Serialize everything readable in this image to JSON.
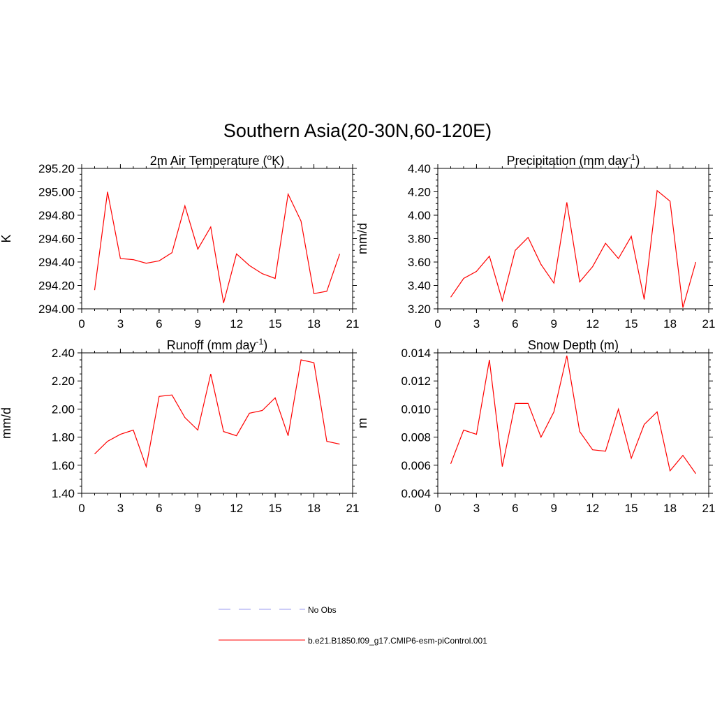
{
  "figure": {
    "title": "Southern Asia(20-30N,60-120E)"
  },
  "colors": {
    "model": "#ff0000",
    "obs": "#9a9af0"
  },
  "legend": {
    "position": "bottom-center",
    "entries": [
      {
        "label": "No Obs",
        "style": "dashed",
        "color": "#9a9af0"
      },
      {
        "label": "b.e21.B1850.f09_g17.CMIP6-esm-piControl.001",
        "style": "solid",
        "color": "#ff0000"
      }
    ]
  },
  "chart_data": [
    {
      "type": "line",
      "title": "2m Air Temperature (°K)",
      "title_main": "2m Air Temperature (",
      "title_sup": "o",
      "title_tail": "K)",
      "ylabel": "K",
      "xlim": [
        0,
        21
      ],
      "ylim": [
        294.0,
        295.2
      ],
      "xticks": [
        0,
        3,
        6,
        9,
        12,
        15,
        18,
        21
      ],
      "xtick_labels": [
        "0",
        "3",
        "6",
        "9",
        "12",
        "15",
        "18",
        "21"
      ],
      "yticks": [
        294.0,
        294.2,
        294.4,
        294.6,
        294.8,
        295.0,
        295.2
      ],
      "ytick_labels": [
        "294.00",
        "294.20",
        "294.40",
        "294.60",
        "294.80",
        "295.00",
        "295.20"
      ],
      "x": [
        1,
        2,
        3,
        4,
        5,
        6,
        7,
        8,
        9,
        10,
        11,
        12,
        13,
        14,
        15,
        16,
        17,
        18,
        19,
        20
      ],
      "series": [
        {
          "name": "b.e21.B1850.f09_g17.CMIP6-esm-piControl.001",
          "values": [
            294.16,
            295.0,
            294.43,
            294.42,
            294.39,
            294.41,
            294.48,
            294.88,
            294.51,
            294.7,
            294.05,
            294.47,
            294.37,
            294.3,
            294.26,
            294.98,
            294.75,
            294.13,
            294.15,
            294.47
          ]
        }
      ]
    },
    {
      "type": "line",
      "title": "Precipitation (mm day-1)",
      "title_main": "Precipitation (mm day",
      "title_sup": "-1",
      "title_tail": ")",
      "ylabel": "mm/d",
      "xlim": [
        0,
        21
      ],
      "ylim": [
        3.2,
        4.4
      ],
      "xticks": [
        0,
        3,
        6,
        9,
        12,
        15,
        18,
        21
      ],
      "xtick_labels": [
        "0",
        "3",
        "6",
        "9",
        "12",
        "15",
        "18",
        "21"
      ],
      "yticks": [
        3.2,
        3.4,
        3.6,
        3.8,
        4.0,
        4.2,
        4.4
      ],
      "ytick_labels": [
        "3.20",
        "3.40",
        "3.60",
        "3.80",
        "4.00",
        "4.20",
        "4.40"
      ],
      "x": [
        1,
        2,
        3,
        4,
        5,
        6,
        7,
        8,
        9,
        10,
        11,
        12,
        13,
        14,
        15,
        16,
        17,
        18,
        19,
        20
      ],
      "series": [
        {
          "name": "b.e21.B1850.f09_g17.CMIP6-esm-piControl.001",
          "values": [
            3.3,
            3.46,
            3.52,
            3.65,
            3.27,
            3.7,
            3.81,
            3.58,
            3.42,
            4.11,
            3.43,
            3.56,
            3.76,
            3.63,
            3.82,
            3.28,
            4.21,
            4.12,
            3.21,
            3.6
          ]
        }
      ]
    },
    {
      "type": "line",
      "title": "Runoff (mm day-1)",
      "title_main": "Runoff (mm day",
      "title_sup": "-1",
      "title_tail": ")",
      "ylabel": "mm/d",
      "xlim": [
        0,
        21
      ],
      "ylim": [
        1.4,
        2.4
      ],
      "xticks": [
        0,
        3,
        6,
        9,
        12,
        15,
        18,
        21
      ],
      "xtick_labels": [
        "0",
        "3",
        "6",
        "9",
        "12",
        "15",
        "18",
        "21"
      ],
      "yticks": [
        1.4,
        1.6,
        1.8,
        2.0,
        2.2,
        2.4
      ],
      "ytick_labels": [
        "1.40",
        "1.60",
        "1.80",
        "2.00",
        "2.20",
        "2.40"
      ],
      "x": [
        1,
        2,
        3,
        4,
        5,
        6,
        7,
        8,
        9,
        10,
        11,
        12,
        13,
        14,
        15,
        16,
        17,
        18,
        19,
        20
      ],
      "series": [
        {
          "name": "b.e21.B1850.f09_g17.CMIP6-esm-piControl.001",
          "values": [
            1.68,
            1.77,
            1.82,
            1.85,
            1.59,
            2.09,
            2.1,
            1.94,
            1.85,
            2.25,
            1.84,
            1.81,
            1.97,
            1.99,
            2.08,
            1.81,
            2.35,
            2.33,
            1.77,
            1.75
          ]
        }
      ]
    },
    {
      "type": "line",
      "title": "Snow Depth (m)",
      "title_main": "Snow Depth (m)",
      "title_sup": "",
      "title_tail": "",
      "ylabel": "m",
      "xlim": [
        0,
        21
      ],
      "ylim": [
        0.004,
        0.014
      ],
      "xticks": [
        0,
        3,
        6,
        9,
        12,
        15,
        18,
        21
      ],
      "xtick_labels": [
        "0",
        "3",
        "6",
        "9",
        "12",
        "15",
        "18",
        "21"
      ],
      "yticks": [
        0.004,
        0.006,
        0.008,
        0.01,
        0.012,
        0.014
      ],
      "ytick_labels": [
        "0.004",
        "0.006",
        "0.008",
        "0.010",
        "0.012",
        "0.014"
      ],
      "x": [
        1,
        2,
        3,
        4,
        5,
        6,
        7,
        8,
        9,
        10,
        11,
        12,
        13,
        14,
        15,
        16,
        17,
        18,
        19,
        20
      ],
      "series": [
        {
          "name": "b.e21.B1850.f09_g17.CMIP6-esm-piControl.001",
          "values": [
            0.0061,
            0.0085,
            0.0082,
            0.0135,
            0.0059,
            0.0104,
            0.0104,
            0.008,
            0.0098,
            0.0138,
            0.0084,
            0.0071,
            0.007,
            0.01,
            0.0065,
            0.0089,
            0.0098,
            0.0056,
            0.0067,
            0.0054
          ]
        }
      ]
    }
  ]
}
